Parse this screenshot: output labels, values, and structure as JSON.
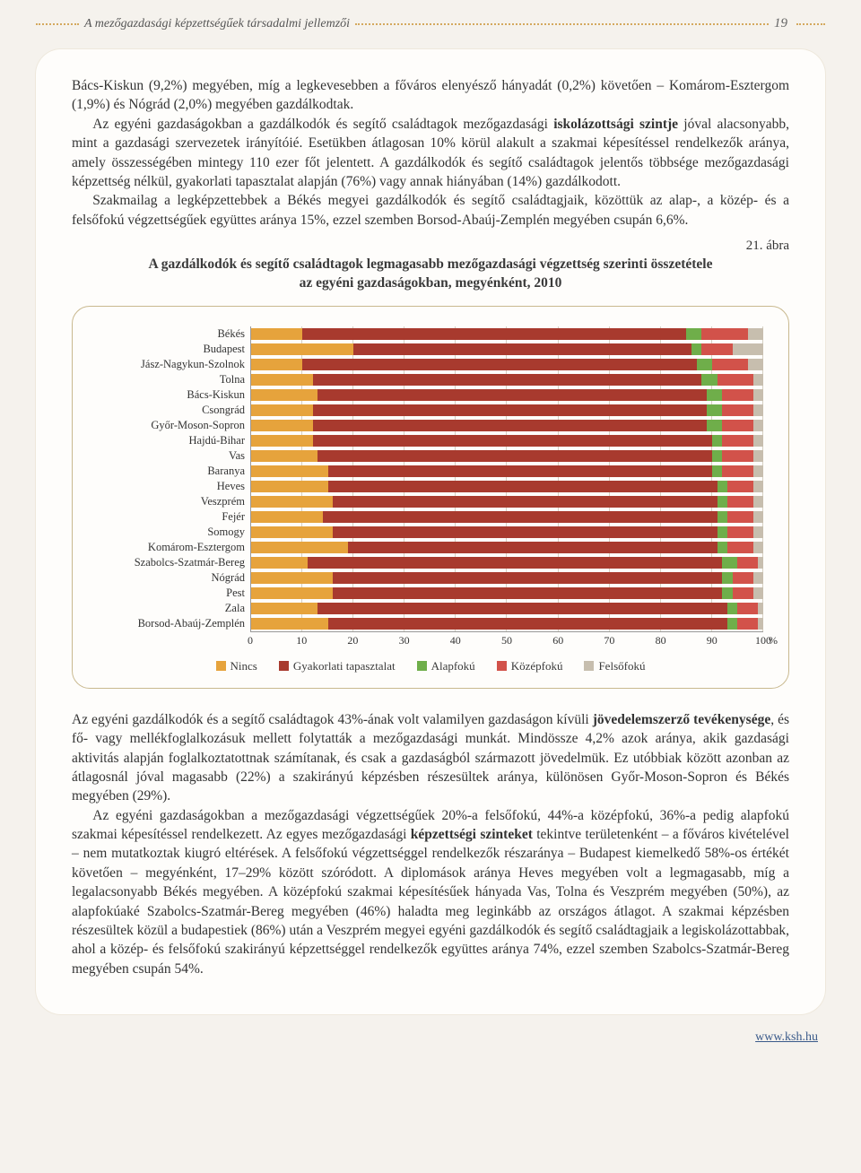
{
  "header": {
    "title": "A mezőgazdasági képzettségűek társadalmi jellemzői",
    "page_number": "19"
  },
  "para1": "Bács-Kiskun (9,2%) megyében, míg a legkevesebben a főváros elenyésző hányadát (0,2%) követően – Komárom-Esztergom (1,9%) és Nógrád (2,0%) megyében gazdálkodtak.",
  "para2_a": "Az egyéni gazdaságokban a gazdálkodók és segítő családtagok mezőgazdasági ",
  "para2_b": "iskolázottsági szintje",
  "para2_c": " jóval alacsonyabb, mint a gazdasági szervezetek irányítóié. Esetükben átlagosan 10% körül alakult a szakmai képesítéssel rendelkezők aránya, amely összességében mintegy 110 ezer főt jelentett. A gazdálkodók és segítő családtagok jelentős többsége mezőgazdasági képzettség nélkül, gyakorlati tapasztalat alapján (76%) vagy annak hiányában (14%) gazdálkodott.",
  "para3": "Szakmailag a legképzettebbek a Békés megyei gazdálkodók és segítő családtagjaik, közöttük az alap-, a közép- és a felsőfokú végzettségűek együttes aránya 15%, ezzel szemben Borsod-Abaúj-Zemplén megyében csupán 6,6%.",
  "figure": {
    "label": "21. ábra",
    "title_line1": "A gazdálkodók és segítő családtagok legmagasabb mezőgazdasági végzettség szerinti összetétele",
    "title_line2": "az egyéni gazdaságokban, megyénként, 2010"
  },
  "chart": {
    "type": "stacked-horizontal-bar",
    "xlim": [
      0,
      100
    ],
    "xtick_step": 10,
    "xticks": [
      "0",
      "10",
      "20",
      "30",
      "40",
      "50",
      "60",
      "70",
      "80",
      "90",
      "100"
    ],
    "x_unit": "%",
    "grid_color": "#d6d0c2",
    "background_color": "#fefdfb",
    "label_fontsize": 12.5,
    "tick_fontsize": 12,
    "series": [
      {
        "key": "nincs",
        "label": "Nincs",
        "color": "#e6a33c"
      },
      {
        "key": "gyak",
        "label": "Gyakorlati tapasztalat",
        "color": "#a83a2e"
      },
      {
        "key": "alap",
        "label": "Alapfokú",
        "color": "#6fae4a"
      },
      {
        "key": "kozep",
        "label": "Középfokú",
        "color": "#d2524a"
      },
      {
        "key": "felso",
        "label": "Felsőfokú",
        "color": "#c7beae"
      }
    ],
    "categories": [
      {
        "label": "Békés",
        "values": [
          10,
          75,
          3,
          9,
          3
        ]
      },
      {
        "label": "Budapest",
        "values": [
          20,
          66,
          2,
          6,
          6
        ]
      },
      {
        "label": "Jász-Nagykun-Szolnok",
        "values": [
          10,
          77,
          3,
          7,
          3
        ]
      },
      {
        "label": "Tolna",
        "values": [
          12,
          76,
          3,
          7,
          2
        ]
      },
      {
        "label": "Bács-Kiskun",
        "values": [
          13,
          76,
          3,
          6,
          2
        ]
      },
      {
        "label": "Csongrád",
        "values": [
          12,
          77,
          3,
          6,
          2
        ]
      },
      {
        "label": "Győr-Moson-Sopron",
        "values": [
          12,
          77,
          3,
          6,
          2
        ]
      },
      {
        "label": "Hajdú-Bihar",
        "values": [
          12,
          78,
          2,
          6,
          2
        ]
      },
      {
        "label": "Vas",
        "values": [
          13,
          77,
          2,
          6,
          2
        ]
      },
      {
        "label": "Baranya",
        "values": [
          15,
          75,
          2,
          6,
          2
        ]
      },
      {
        "label": "Heves",
        "values": [
          15,
          76,
          2,
          5,
          2
        ]
      },
      {
        "label": "Veszprém",
        "values": [
          16,
          75,
          2,
          5,
          2
        ]
      },
      {
        "label": "Fejér",
        "values": [
          14,
          77,
          2,
          5,
          2
        ]
      },
      {
        "label": "Somogy",
        "values": [
          16,
          75,
          2,
          5,
          2
        ]
      },
      {
        "label": "Komárom-Esztergom",
        "values": [
          19,
          72,
          2,
          5,
          2
        ]
      },
      {
        "label": "Szabolcs-Szatmár-Bereg",
        "values": [
          11,
          81,
          3,
          4,
          1
        ]
      },
      {
        "label": "Nógrád",
        "values": [
          16,
          76,
          2,
          4,
          2
        ]
      },
      {
        "label": "Pest",
        "values": [
          16,
          76,
          2,
          4,
          2
        ]
      },
      {
        "label": "Zala",
        "values": [
          13,
          80,
          2,
          4,
          1
        ]
      },
      {
        "label": "Borsod-Abaúj-Zemplén",
        "values": [
          15,
          78,
          2,
          4,
          1
        ]
      }
    ]
  },
  "para4_a": "Az egyéni gazdálkodók és a segítő családtagok 43%-ának volt valamilyen gazdaságon kívüli ",
  "para4_b": "jövedelemszerző tevékenysége",
  "para4_c": ", és fő- vagy mellékfoglalkozásuk mellett folytatták a mezőgazdasági munkát. Mindössze 4,2% azok aránya, akik gazdasági aktivitás alapján foglalkoztatottnak számítanak, és csak a gazdaságból származott jövedelmük. Ez utóbbiak között azonban az átlagosnál jóval magasabb (22%) a szakirányú képzésben részesültek aránya, különösen Győr-Moson-Sopron és Békés megyében (29%).",
  "para5_a": "Az egyéni gazdaságokban a mezőgazdasági végzettségűek 20%-a felsőfokú, 44%-a középfokú, 36%-a pedig alapfokú szakmai képesítéssel rendelkezett. Az egyes mezőgazdasági ",
  "para5_b": "képzettségi szinteket",
  "para5_c": " tekintve területenként – a főváros kivételével – nem mutatkoztak kiugró eltérések. A felsőfokú végzettséggel rendelkezők részaránya – Budapest kiemelkedő 58%-os értékét követően – megyénként, 17–29% között szóródott. A diplomások aránya Heves megyében volt a legmagasabb, míg a legalacsonyabb Békés megyében. A középfokú szakmai képesítésűek hányada Vas, Tolna és Veszprém megyében (50%), az alapfokúaké Szabolcs-Szatmár-Bereg megyében (46%) haladta meg leginkább az országos átlagot. A szakmai képzésben részesültek közül a budapestiek (86%) után a Veszprém megyei egyéni gazdálkodók és segítő családtagjaik a legiskolázottabbak, ahol a közép- és felsőfokú szakirányú képzettséggel rendelkezők együttes aránya 74%, ezzel szemben Szabolcs-Szatmár-Bereg megyében csupán 54%.",
  "footer": {
    "url": "www.ksh.hu"
  }
}
